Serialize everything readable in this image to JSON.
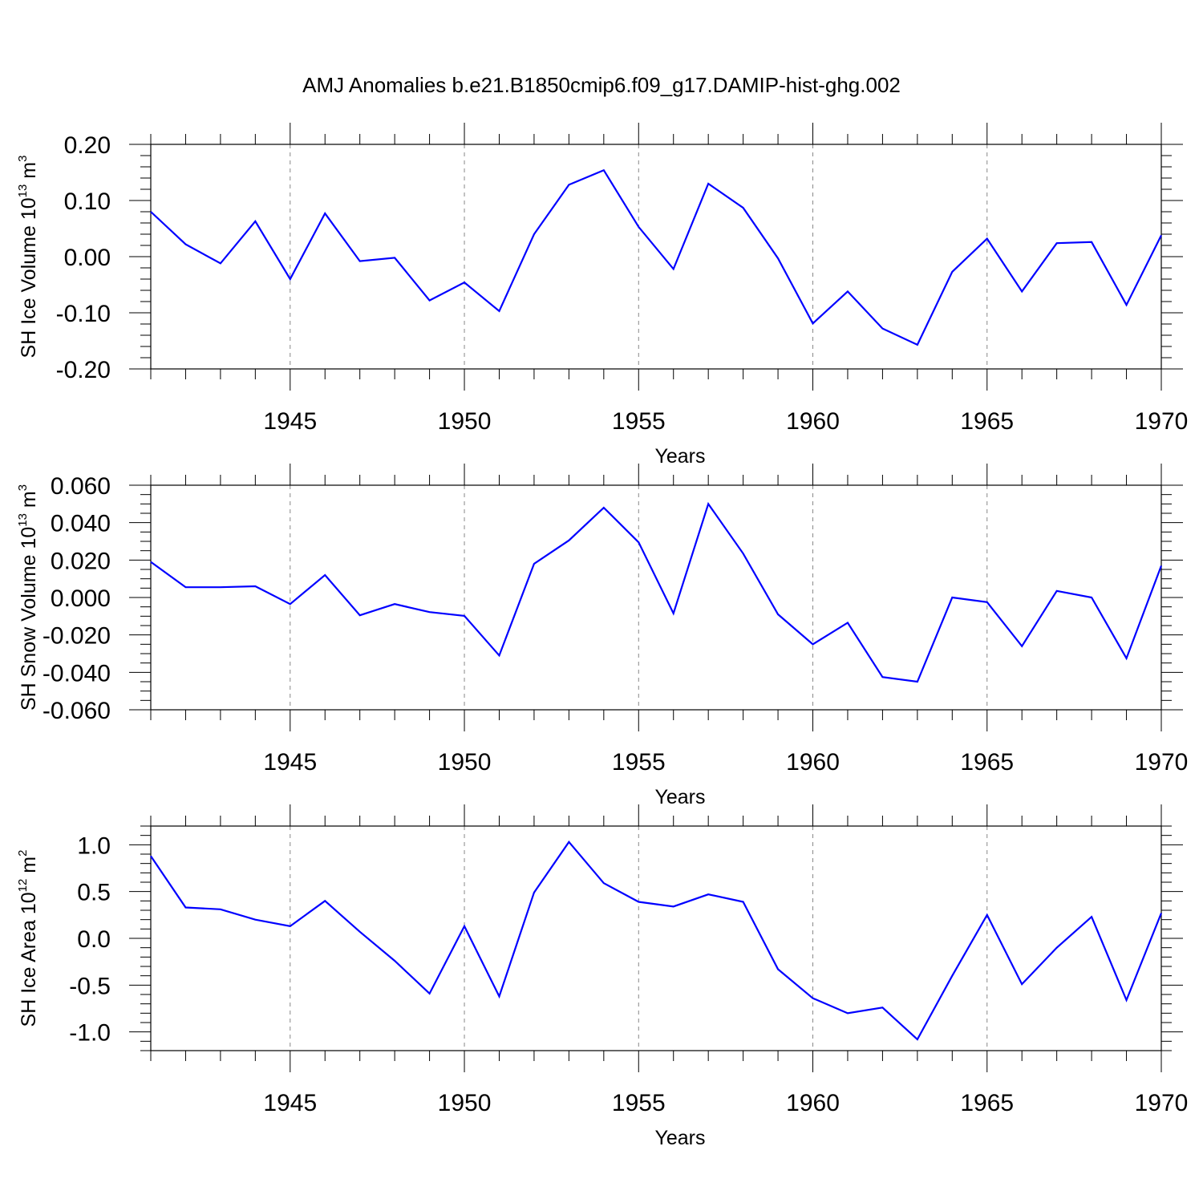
{
  "title": "AMJ Anomalies b.e21.B1850cmip6.f09_g17.DAMIP-hist-ghg.002",
  "colors": {
    "line": "#0000ff",
    "axis": "#000000",
    "grid": "#888888"
  },
  "chart_data": [
    {
      "type": "line",
      "ylabel_main": "SH Ice Volume 10",
      "ylabel_exp": "13",
      "ylabel_unit": " m",
      "ylabel_unit_exp": "3",
      "xlabel": "Years",
      "xlim": [
        1941,
        1970
      ],
      "ylim": [
        -0.2,
        0.2
      ],
      "xticks": [
        1945,
        1950,
        1955,
        1960,
        1965,
        1970
      ],
      "xtick_labels": [
        "1945",
        "1950",
        "1955",
        "1960",
        "1965",
        "1970"
      ],
      "yticks": [
        -0.2,
        -0.1,
        0.0,
        0.1,
        0.2
      ],
      "ytick_labels": [
        "-0.20",
        "-0.10",
        "0.00",
        "0.10",
        "0.20"
      ],
      "yminor_step": 0.02,
      "x": [
        1941,
        1942,
        1943,
        1944,
        1945,
        1946,
        1947,
        1948,
        1949,
        1950,
        1951,
        1952,
        1953,
        1954,
        1955,
        1956,
        1957,
        1958,
        1959,
        1960,
        1961,
        1962,
        1963,
        1964,
        1965,
        1966,
        1967,
        1968,
        1969,
        1970
      ],
      "series": [
        {
          "name": "SH Ice Volume",
          "values": [
            0.08,
            0.022,
            -0.012,
            0.063,
            -0.04,
            0.077,
            -0.008,
            -0.002,
            -0.078,
            -0.046,
            -0.097,
            0.04,
            0.128,
            0.154,
            0.053,
            -0.022,
            0.13,
            0.087,
            -0.003,
            -0.119,
            -0.062,
            -0.128,
            -0.157,
            -0.027,
            0.032,
            -0.062,
            0.024,
            0.026,
            -0.086,
            0.038
          ]
        }
      ]
    },
    {
      "type": "line",
      "ylabel_main": "SH Snow Volume 10",
      "ylabel_exp": "13",
      "ylabel_unit": " m",
      "ylabel_unit_exp": "3",
      "xlabel": "Years",
      "xlim": [
        1941,
        1970
      ],
      "ylim": [
        -0.06,
        0.06
      ],
      "xticks": [
        1945,
        1950,
        1955,
        1960,
        1965,
        1970
      ],
      "xtick_labels": [
        "1945",
        "1950",
        "1955",
        "1960",
        "1965",
        "1970"
      ],
      "yticks": [
        -0.06,
        -0.04,
        -0.02,
        0.0,
        0.02,
        0.04,
        0.06
      ],
      "ytick_labels": [
        "-0.060",
        "-0.040",
        "-0.020",
        "0.000",
        "0.020",
        "0.040",
        "0.060"
      ],
      "yminor_step": 0.005,
      "x": [
        1941,
        1942,
        1943,
        1944,
        1945,
        1946,
        1947,
        1948,
        1949,
        1950,
        1951,
        1952,
        1953,
        1954,
        1955,
        1956,
        1957,
        1958,
        1959,
        1960,
        1961,
        1962,
        1963,
        1964,
        1965,
        1966,
        1967,
        1968,
        1969,
        1970
      ],
      "series": [
        {
          "name": "SH Snow Volume",
          "values": [
            0.019,
            0.0055,
            0.0055,
            0.006,
            -0.0035,
            0.012,
            -0.0095,
            -0.0035,
            -0.0078,
            -0.0098,
            -0.031,
            0.018,
            0.0305,
            0.048,
            0.0295,
            -0.0085,
            0.05,
            0.0235,
            -0.009,
            -0.025,
            -0.0135,
            -0.0425,
            -0.045,
            0.0,
            -0.0025,
            -0.026,
            0.0035,
            0.0,
            -0.0325,
            0.017
          ]
        }
      ]
    },
    {
      "type": "line",
      "ylabel_main": "SH Ice Area 10",
      "ylabel_exp": "12",
      "ylabel_unit": " m",
      "ylabel_unit_exp": "2",
      "xlabel": "Years",
      "xlim": [
        1941,
        1970
      ],
      "ylim": [
        -1.2,
        1.2
      ],
      "xticks": [
        1945,
        1950,
        1955,
        1960,
        1965,
        1970
      ],
      "xtick_labels": [
        "1945",
        "1950",
        "1955",
        "1960",
        "1965",
        "1970"
      ],
      "yticks": [
        -1.0,
        -0.5,
        0.0,
        0.5,
        1.0
      ],
      "ytick_labels": [
        "-1.0",
        "-0.5",
        "0.0",
        "0.5",
        "1.0"
      ],
      "yminor_step": 0.1,
      "x": [
        1941,
        1942,
        1943,
        1944,
        1945,
        1946,
        1947,
        1948,
        1949,
        1950,
        1951,
        1952,
        1953,
        1954,
        1955,
        1956,
        1957,
        1958,
        1959,
        1960,
        1961,
        1962,
        1963,
        1964,
        1965,
        1966,
        1967,
        1968,
        1969,
        1970
      ],
      "series": [
        {
          "name": "SH Ice Area",
          "values": [
            0.88,
            0.33,
            0.31,
            0.2,
            0.13,
            0.4,
            0.07,
            -0.24,
            -0.59,
            0.13,
            -0.62,
            0.49,
            1.03,
            0.59,
            0.39,
            0.34,
            0.47,
            0.39,
            -0.33,
            -0.64,
            -0.8,
            -0.74,
            -1.08,
            -0.4,
            0.25,
            -0.49,
            -0.1,
            0.23,
            -0.66,
            0.27
          ]
        }
      ]
    }
  ]
}
